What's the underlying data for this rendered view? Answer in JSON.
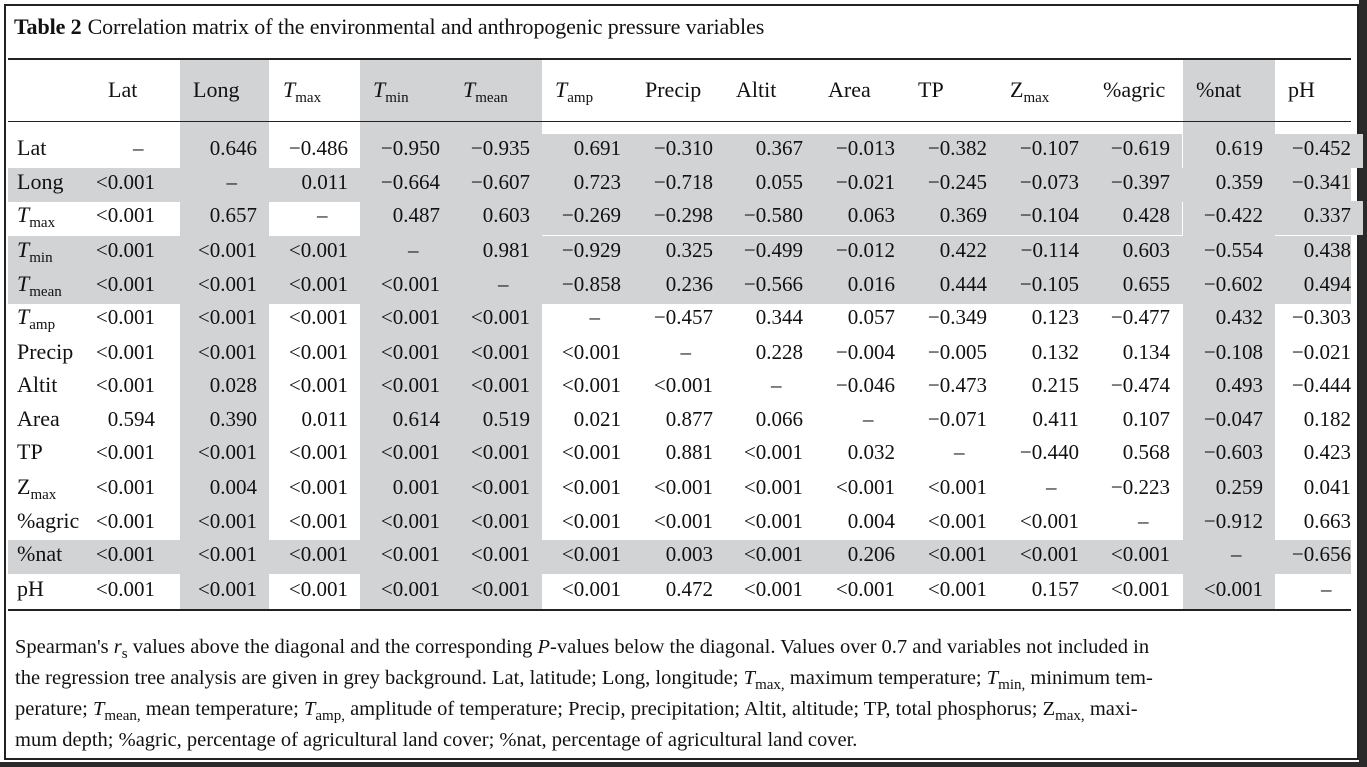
{
  "caption": {
    "label": "Table 2",
    "text": "Correlation matrix of the environmental and anthropogenic pressure variables"
  },
  "table": {
    "headers": [
      {
        "base": "Lat",
        "sub": "",
        "italic": false
      },
      {
        "base": "Long",
        "sub": "",
        "italic": false
      },
      {
        "base": "T",
        "sub": "max",
        "italic": true
      },
      {
        "base": "T",
        "sub": "min",
        "italic": true
      },
      {
        "base": "T",
        "sub": "mean",
        "italic": true
      },
      {
        "base": "T",
        "sub": "amp",
        "italic": true
      },
      {
        "base": "Precip",
        "sub": "",
        "italic": false
      },
      {
        "base": "Altit",
        "sub": "",
        "italic": false
      },
      {
        "base": "Area",
        "sub": "",
        "italic": false
      },
      {
        "base": "TP",
        "sub": "",
        "italic": false
      },
      {
        "base": "Z",
        "sub": "max",
        "italic": false
      },
      {
        "base": "%agric",
        "sub": "",
        "italic": false
      },
      {
        "base": "%nat",
        "sub": "",
        "italic": false
      },
      {
        "base": "pH",
        "sub": "",
        "italic": false
      }
    ],
    "rows": [
      {
        "label": {
          "base": "Lat",
          "sub": "",
          "italic": false
        },
        "cells": [
          "–",
          "0.646",
          "−0.486",
          "−0.950",
          "−0.935",
          "0.691",
          "−0.310",
          "0.367",
          "−0.013",
          "−0.382",
          "−0.107",
          "−0.619",
          "0.619",
          "−0.452"
        ]
      },
      {
        "label": {
          "base": "Long",
          "sub": "",
          "italic": false
        },
        "cells": [
          "<0.001",
          "–",
          "0.011",
          "−0.664",
          "−0.607",
          "0.723",
          "−0.718",
          "0.055",
          "−0.021",
          "−0.245",
          "−0.073",
          "−0.397",
          "0.359",
          "−0.341"
        ]
      },
      {
        "label": {
          "base": "T",
          "sub": "max",
          "italic": true
        },
        "cells": [
          "<0.001",
          "0.657",
          "–",
          "0.487",
          "0.603",
          "−0.269",
          "−0.298",
          "−0.580",
          "0.063",
          "0.369",
          "−0.104",
          "0.428",
          "−0.422",
          "0.337"
        ]
      },
      {
        "label": {
          "base": "T",
          "sub": "min",
          "italic": true
        },
        "cells": [
          "<0.001",
          "<0.001",
          "<0.001",
          "–",
          "0.981",
          "−0.929",
          "0.325",
          "−0.499",
          "−0.012",
          "0.422",
          "−0.114",
          "0.603",
          "−0.554",
          "0.438"
        ]
      },
      {
        "label": {
          "base": "T",
          "sub": "mean",
          "italic": true
        },
        "cells": [
          "<0.001",
          "<0.001",
          "<0.001",
          "<0.001",
          "–",
          "−0.858",
          "0.236",
          "−0.566",
          "0.016",
          "0.444",
          "−0.105",
          "0.655",
          "−0.602",
          "0.494"
        ]
      },
      {
        "label": {
          "base": "T",
          "sub": "amp",
          "italic": true
        },
        "cells": [
          "<0.001",
          "<0.001",
          "<0.001",
          "<0.001",
          "<0.001",
          "–",
          "−0.457",
          "0.344",
          "0.057",
          "−0.349",
          "0.123",
          "−0.477",
          "0.432",
          "−0.303"
        ]
      },
      {
        "label": {
          "base": "Precip",
          "sub": "",
          "italic": false
        },
        "cells": [
          "<0.001",
          "<0.001",
          "<0.001",
          "<0.001",
          "<0.001",
          "<0.001",
          "–",
          "0.228",
          "−0.004",
          "−0.005",
          "0.132",
          "0.134",
          "−0.108",
          "−0.021"
        ]
      },
      {
        "label": {
          "base": "Altit",
          "sub": "",
          "italic": false
        },
        "cells": [
          "<0.001",
          "0.028",
          "<0.001",
          "<0.001",
          "<0.001",
          "<0.001",
          "<0.001",
          "–",
          "−0.046",
          "−0.473",
          "0.215",
          "−0.474",
          "0.493",
          "−0.444"
        ]
      },
      {
        "label": {
          "base": "Area",
          "sub": "",
          "italic": false
        },
        "cells": [
          "0.594",
          "0.390",
          "0.011",
          "0.614",
          "0.519",
          "0.021",
          "0.877",
          "0.066",
          "–",
          "−0.071",
          "0.411",
          "0.107",
          "−0.047",
          "0.182"
        ]
      },
      {
        "label": {
          "base": "TP",
          "sub": "",
          "italic": false
        },
        "cells": [
          "<0.001",
          "<0.001",
          "<0.001",
          "<0.001",
          "<0.001",
          "<0.001",
          "0.881",
          "<0.001",
          "0.032",
          "–",
          "−0.440",
          "0.568",
          "−0.603",
          "0.423"
        ]
      },
      {
        "label": {
          "base": "Z",
          "sub": "max",
          "italic": false
        },
        "cells": [
          "<0.001",
          "0.004",
          "<0.001",
          "0.001",
          "<0.001",
          "<0.001",
          "<0.001",
          "<0.001",
          "<0.001",
          "<0.001",
          "–",
          "−0.223",
          "0.259",
          "0.041"
        ]
      },
      {
        "label": {
          "base": "%agric",
          "sub": "",
          "italic": false
        },
        "cells": [
          "<0.001",
          "<0.001",
          "<0.001",
          "<0.001",
          "<0.001",
          "<0.001",
          "<0.001",
          "<0.001",
          "0.004",
          "<0.001",
          "<0.001",
          "–",
          "−0.912",
          "0.663"
        ]
      },
      {
        "label": {
          "base": "%nat",
          "sub": "",
          "italic": false
        },
        "cells": [
          "<0.001",
          "<0.001",
          "<0.001",
          "<0.001",
          "<0.001",
          "<0.001",
          "0.003",
          "<0.001",
          "0.206",
          "<0.001",
          "<0.001",
          "<0.001",
          "–",
          "−0.656"
        ]
      },
      {
        "label": {
          "base": "pH",
          "sub": "",
          "italic": false
        },
        "cells": [
          "<0.001",
          "<0.001",
          "<0.001",
          "<0.001",
          "<0.001",
          "<0.001",
          "0.472",
          "<0.001",
          "<0.001",
          "<0.001",
          "0.157",
          "<0.001",
          "<0.001",
          "–"
        ]
      }
    ],
    "grey_columns": [
      1,
      3,
      4,
      12
    ],
    "grey_rows": [
      1,
      3,
      4,
      12
    ],
    "grey_cells": [
      [
        0,
        5
      ],
      [
        0,
        6
      ],
      [
        0,
        7
      ],
      [
        0,
        8
      ],
      [
        0,
        9
      ],
      [
        0,
        10
      ],
      [
        0,
        11
      ],
      [
        0,
        13
      ],
      [
        2,
        1
      ],
      [
        2,
        5
      ],
      [
        2,
        6
      ],
      [
        2,
        7
      ],
      [
        2,
        8
      ],
      [
        2,
        9
      ],
      [
        2,
        10
      ],
      [
        2,
        11
      ],
      [
        2,
        13
      ]
    ],
    "grey_color": "#d2d3d5"
  },
  "footnote": {
    "lines": [
      [
        {
          "t": "Spearman's "
        },
        {
          "t": "r",
          "i": true
        },
        {
          "t": "s",
          "sub": true
        },
        {
          "t": " values above the diagonal and the corresponding "
        },
        {
          "t": "P",
          "i": true
        },
        {
          "t": "-values below the diagonal. Values over 0.7 and variables not included in"
        }
      ],
      [
        {
          "t": "the regression tree analysis are given in grey background. Lat, latitude; Long, longitude; "
        },
        {
          "t": "T",
          "i": true
        },
        {
          "t": "max,",
          "sub": true
        },
        {
          "t": " maximum temperature; "
        },
        {
          "t": "T",
          "i": true
        },
        {
          "t": "min,",
          "sub": true
        },
        {
          "t": " minimum tem-"
        }
      ],
      [
        {
          "t": "perature; "
        },
        {
          "t": "T",
          "i": true
        },
        {
          "t": "mean,",
          "sub": true
        },
        {
          "t": " mean temperature; "
        },
        {
          "t": "T",
          "i": true
        },
        {
          "t": "amp,",
          "sub": true
        },
        {
          "t": " amplitude of temperature; Precip, precipitation; Altit, altitude; TP, total phosphorus; Z"
        },
        {
          "t": "max,",
          "sub": true
        },
        {
          "t": " maxi-"
        }
      ],
      [
        {
          "t": "mum depth; %agric, percentage of agricultural land cover; %nat, percentage of agricultural land cover."
        }
      ]
    ]
  }
}
